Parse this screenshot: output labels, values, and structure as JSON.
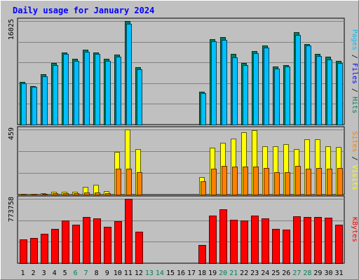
{
  "chart_data": {
    "type": "bar",
    "title": "Daily usage for January 2024",
    "x": [
      "1",
      "2",
      "3",
      "4",
      "5",
      "6",
      "7",
      "8",
      "9",
      "10",
      "11",
      "12",
      "13",
      "14",
      "15",
      "16",
      "17",
      "18",
      "19",
      "20",
      "21",
      "22",
      "23",
      "24",
      "25",
      "26",
      "27",
      "28",
      "29",
      "30",
      "31"
    ],
    "weekend_days": [
      "6",
      "7",
      "13",
      "14",
      "20",
      "21",
      "27",
      "28"
    ],
    "panels": [
      {
        "name": "hits-files-pages",
        "max_label": "16025",
        "ylim": [
          0,
          16025
        ],
        "series": [
          {
            "name": "Hits",
            "color": "#00805c",
            "values": [
              6600,
              6000,
              7800,
              9500,
              11200,
              10200,
              11600,
              11100,
              10200,
              10800,
              16025,
              8900,
              0,
              0,
              0,
              0,
              0,
              5100,
              13200,
              13500,
              10900,
              9500,
              11400,
              12200,
              9000,
              9200,
              14300,
              12500,
              10900,
              10500,
              9800
            ]
          },
          {
            "name": "Files",
            "color": "#0000ff",
            "values": [
              0,
              0,
              0,
              0,
              0,
              0,
              0,
              0,
              0,
              0,
              0,
              0,
              0,
              0,
              0,
              0,
              0,
              0,
              0,
              0,
              0,
              0,
              0,
              0,
              0,
              0,
              0,
              0,
              0,
              0,
              0
            ]
          },
          {
            "name": "Pages",
            "color": "#00c0ff",
            "values": [
              6400,
              5800,
              7500,
              9200,
              10900,
              9800,
              11300,
              10900,
              9900,
              10500,
              15600,
              8600,
              0,
              0,
              0,
              0,
              0,
              4900,
              12900,
              13100,
              10400,
              9200,
              11000,
              11900,
              8700,
              9000,
              13900,
              12200,
              10600,
              10100,
              9500
            ]
          }
        ]
      },
      {
        "name": "visits-sites",
        "max_label": "459",
        "ylim": [
          0,
          459
        ],
        "series": [
          {
            "name": "Visits",
            "color": "#ffff00",
            "values": [
              5,
              5,
              10,
              20,
              20,
              20,
              55,
              70,
              25,
              300,
              459,
              320,
              0,
              0,
              0,
              0,
              0,
              125,
              330,
              365,
              395,
              440,
              455,
              340,
              340,
              355,
              320,
              390,
              390,
              340,
              335
            ]
          },
          {
            "name": "Sites",
            "color": "#ff8000",
            "values": [
              3,
              3,
              5,
              10,
              10,
              10,
              15,
              15,
              10,
              185,
              185,
              160,
              0,
              0,
              0,
              0,
              0,
              95,
              185,
              200,
              195,
              195,
              195,
              190,
              160,
              160,
              200,
              185,
              190,
              185,
              190
            ]
          }
        ]
      },
      {
        "name": "kbytes",
        "max_label": "773758",
        "ylim": [
          0,
          773758
        ],
        "series": [
          {
            "name": "KBytes",
            "color": "#ff0000",
            "values": [
              285000,
              300000,
              350000,
              410000,
              510000,
              465000,
              555000,
              535000,
              435000,
              505000,
              773758,
              380000,
              0,
              0,
              0,
              0,
              0,
              215000,
              575000,
              645000,
              525000,
              510000,
              575000,
              535000,
              410000,
              405000,
              565000,
              555000,
              555000,
              545000,
              465000
            ]
          }
        ]
      }
    ],
    "legend_placement": "right"
  }
}
